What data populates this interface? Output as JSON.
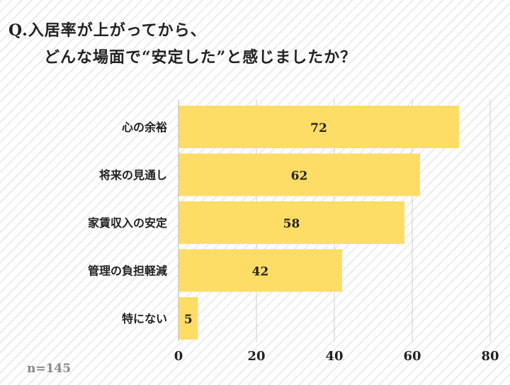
{
  "chart_data": {
    "type": "bar",
    "orientation": "horizontal",
    "title": [
      "Q.入居率が上がってから、",
      "どんな場面で“安定した”と感じましたか？"
    ],
    "categories": [
      "心の余裕",
      "将来の見通し",
      "家賃収入の安定",
      "管理の負担軽減",
      "特にない"
    ],
    "values": [
      72,
      62,
      58,
      42,
      5
    ],
    "xlim": [
      0,
      80
    ],
    "xticks": [
      0,
      20,
      40,
      60,
      80
    ],
    "grid": true,
    "bar_color": "#fedd66",
    "grid_color": "#cccccc",
    "sample_size": "n=145"
  }
}
